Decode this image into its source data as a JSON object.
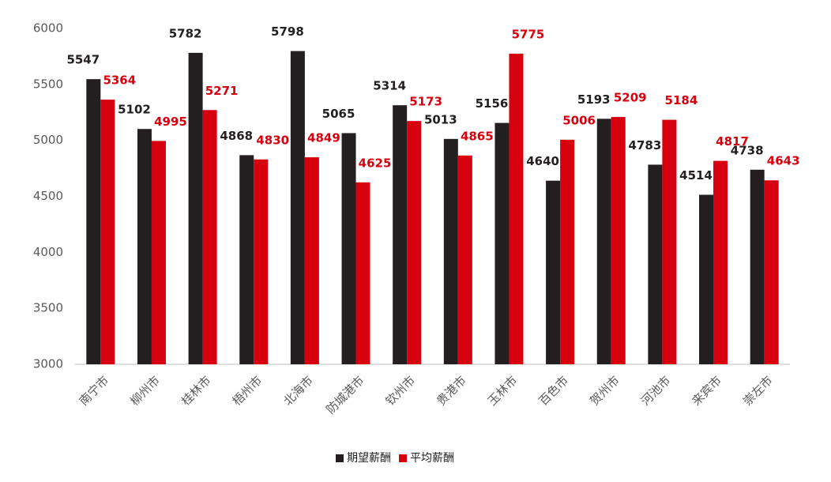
{
  "chart_data": {
    "type": "bar",
    "categories": [
      "南宁市",
      "柳州市",
      "桂林市",
      "梧州市",
      "北海市",
      "防城港市",
      "钦州市",
      "贵港市",
      "玉林市",
      "百色市",
      "贺州市",
      "河池市",
      "来宾市",
      "崇左市"
    ],
    "series": [
      {
        "name": "期望薪酬",
        "color": "#231f20",
        "values": [
          5547,
          5102,
          5782,
          4868,
          5798,
          5065,
          5314,
          5013,
          5156,
          4640,
          5193,
          4783,
          4514,
          4738
        ]
      },
      {
        "name": "平均薪酬",
        "color": "#d7000f",
        "values": [
          5364,
          4995,
          5271,
          4830,
          4849,
          4625,
          5173,
          4865,
          5775,
          5006,
          5209,
          5184,
          4817,
          4643
        ]
      }
    ],
    "ylim": [
      3000,
      6000
    ],
    "yticks": [
      3000,
      3500,
      4000,
      4500,
      5000,
      5500,
      6000
    ],
    "grid": false,
    "legend": "bottom"
  }
}
